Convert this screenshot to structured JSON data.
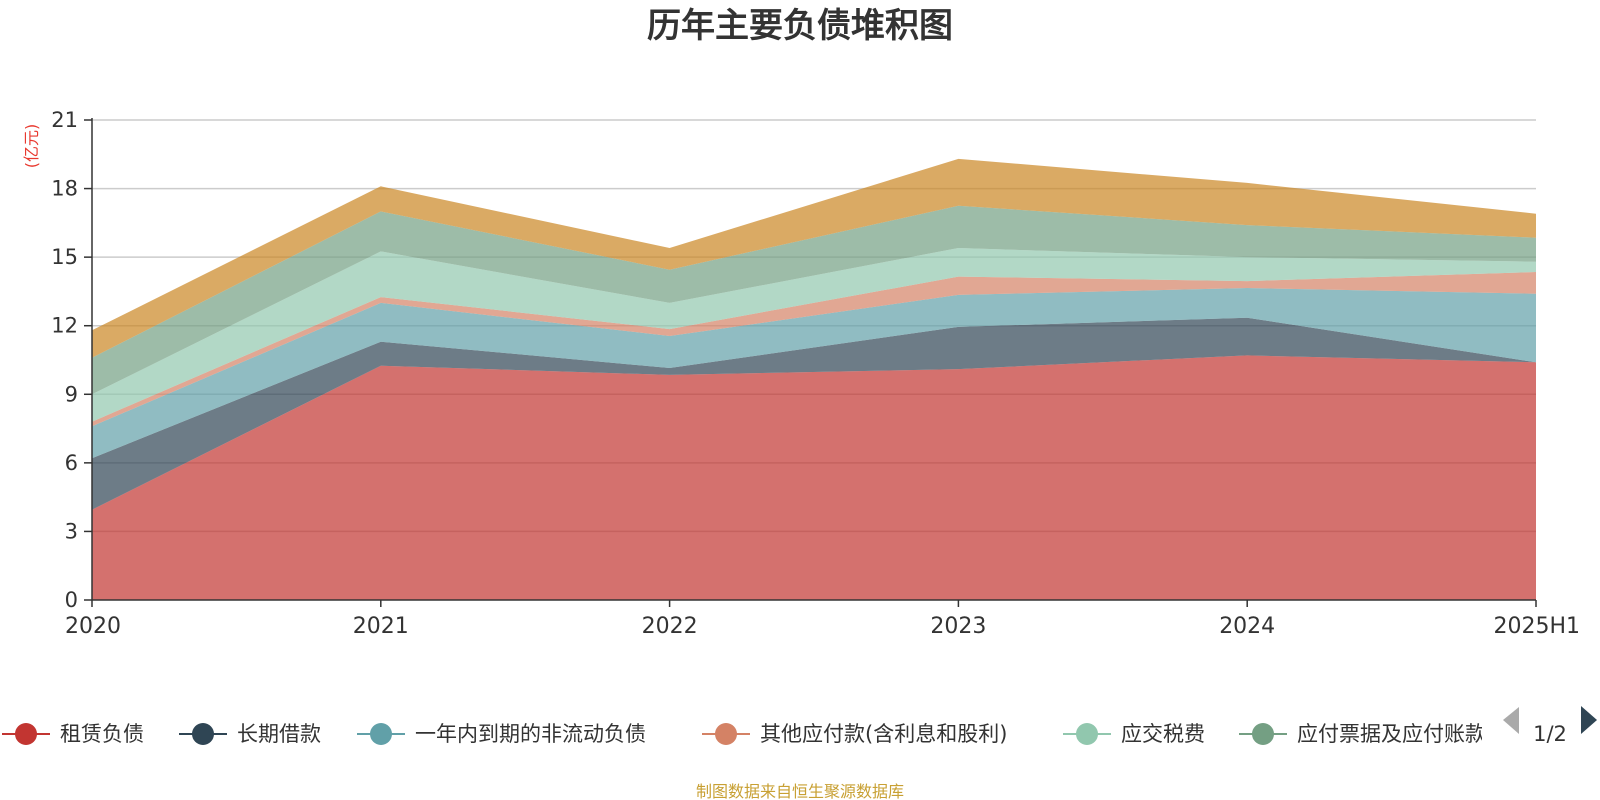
{
  "chart_data": {
    "type": "area",
    "stacked": true,
    "title": "历年主要负债堆积图",
    "unit_label": "(亿元)",
    "unit_color": "#e8392f",
    "categories": [
      "2020",
      "2021",
      "2022",
      "2023",
      "2024",
      "2025H1"
    ],
    "y_ticks": [
      "0",
      "3",
      "6",
      "9",
      "12",
      "15",
      "18",
      "21"
    ],
    "ylim": [
      0,
      21
    ],
    "grid": true,
    "legend_position": "bottom",
    "series": [
      {
        "name": "租赁负债",
        "color": "#c23531",
        "values": [
          3.95,
          10.25,
          9.85,
          10.1,
          10.7,
          10.4
        ]
      },
      {
        "name": "长期借款",
        "color": "#2f4554",
        "values": [
          2.25,
          1.05,
          0.3,
          1.85,
          1.65,
          0.0
        ]
      },
      {
        "name": "一年内到期的非流动负债",
        "color": "#61a0a8",
        "values": [
          1.4,
          1.7,
          1.4,
          1.4,
          1.3,
          3.0
        ]
      },
      {
        "name": "其他应付款(含利息和股利)",
        "color": "#d48265",
        "values": [
          0.2,
          0.25,
          0.3,
          0.8,
          0.3,
          0.95
        ]
      },
      {
        "name": "应交税费",
        "color": "#91c7ae",
        "values": [
          1.2,
          2.0,
          1.15,
          1.25,
          1.05,
          0.45
        ]
      },
      {
        "name": "应付票据及应付账款",
        "color": "#749f83",
        "values": [
          1.6,
          1.75,
          1.45,
          1.85,
          1.4,
          1.05
        ]
      },
      {
        "name": "",
        "color": "#ca8622",
        "values": [
          1.2,
          1.1,
          0.95,
          2.05,
          1.85,
          1.05
        ]
      }
    ]
  },
  "legend": {
    "items": [
      {
        "label": "租赁负债",
        "color": "#c23531"
      },
      {
        "label": "长期借款",
        "color": "#2f4554"
      },
      {
        "label": "一年内到期的非流动负债",
        "color": "#61a0a8"
      },
      {
        "label": "其他应付款(含利息和股利)",
        "color": "#d48265"
      },
      {
        "label": "应交税费",
        "color": "#91c7ae"
      },
      {
        "label": "应付票据及应付账款",
        "color": "#749f83"
      }
    ],
    "page_indicator": "1/2",
    "prev_icon": "triangle-left-icon",
    "next_icon": "triangle-right-icon"
  },
  "source_note": {
    "text": "制图数据来自恒生聚源数据库",
    "color": "#c8a033"
  }
}
